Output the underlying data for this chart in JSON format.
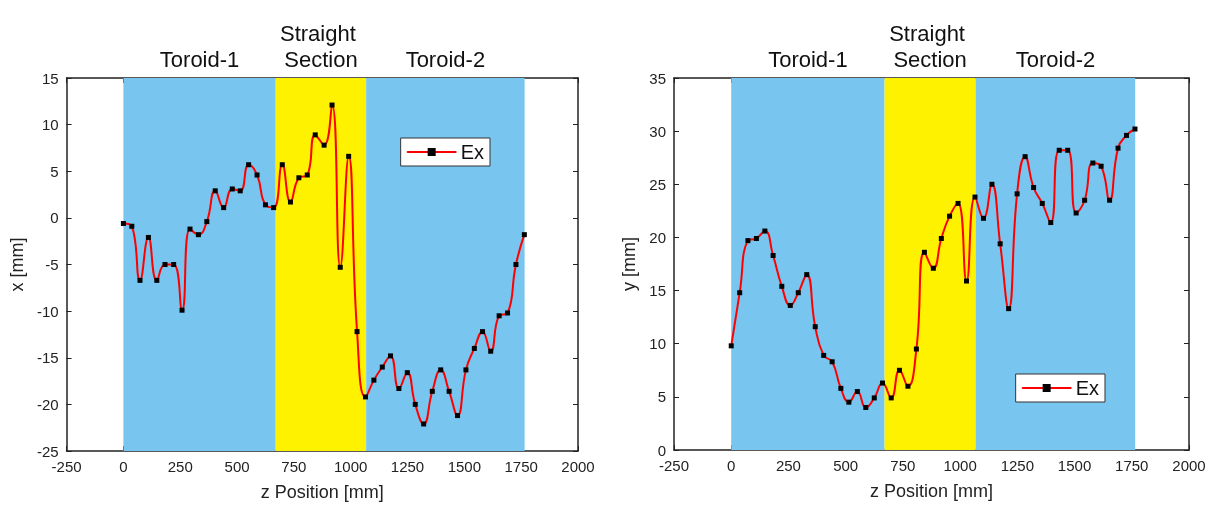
{
  "chart_data": [
    {
      "type": "line",
      "xlabel": "z Position [mm]",
      "ylabel": "x [mm]",
      "xlim": [
        -250,
        2000
      ],
      "xticks": [
        -250,
        0,
        250,
        500,
        750,
        1000,
        1250,
        1500,
        1750,
        2000
      ],
      "ylim": [
        -25,
        15
      ],
      "yticks": [
        -25,
        -20,
        -15,
        -10,
        -5,
        0,
        5,
        10,
        15
      ],
      "grid": false,
      "legend": "top right",
      "marker": "square",
      "line_style": "solid",
      "bands": [
        {
          "axis": "x",
          "from": 0,
          "to": 670,
          "label": "Toroid-1",
          "color": "#78c5ef"
        },
        {
          "axis": "x",
          "from": 670,
          "to": 1068,
          "label": "Straight Section",
          "color": "#fff200"
        },
        {
          "axis": "x",
          "from": 1068,
          "to": 1765,
          "label": "Toroid-2",
          "color": "#78c5ef"
        }
      ],
      "series": [
        {
          "name": "Ex",
          "color": "#ff0000",
          "x": [
            0,
            37,
            73,
            110,
            147,
            183,
            221,
            258,
            293,
            330,
            367,
            404,
            441,
            479,
            514,
            551,
            588,
            625,
            661,
            699,
            735,
            772,
            809,
            844,
            883,
            918,
            954,
            991,
            1028,
            1065,
            1102,
            1139,
            1175,
            1212,
            1249,
            1284,
            1321,
            1359,
            1396,
            1433,
            1470,
            1507,
            1544,
            1580,
            1616,
            1653,
            1690,
            1727,
            1764
          ],
          "values": [
            -0.6,
            -0.9,
            -6.7,
            -2.1,
            -6.7,
            -5.0,
            -5.0,
            -9.9,
            -1.2,
            -1.8,
            -0.4,
            2.9,
            1.1,
            3.1,
            2.9,
            5.7,
            4.6,
            1.4,
            1.1,
            5.7,
            1.7,
            4.3,
            4.6,
            8.9,
            7.8,
            12.1,
            -5.3,
            6.6,
            -12.2,
            -19.2,
            -17.4,
            -16.0,
            -14.8,
            -18.3,
            -16.6,
            -20.0,
            -22.1,
            -18.6,
            -16.3,
            -18.6,
            -21.2,
            -16.3,
            -14.0,
            -12.2,
            -14.3,
            -10.5,
            -10.2,
            -5.0,
            -1.8
          ]
        }
      ]
    },
    {
      "type": "line",
      "xlabel": "z Position [mm]",
      "ylabel": "y [mm]",
      "xlim": [
        -250,
        2000
      ],
      "xticks": [
        -250,
        0,
        250,
        500,
        750,
        1000,
        1250,
        1500,
        1750,
        2000
      ],
      "ylim": [
        0,
        35
      ],
      "yticks": [
        0,
        5,
        10,
        15,
        20,
        25,
        30,
        35
      ],
      "grid": false,
      "legend": "bottom right",
      "marker": "square",
      "line_style": "solid",
      "bands": [
        {
          "axis": "x",
          "from": 0,
          "to": 670,
          "label": "Toroid-1",
          "color": "#78c5ef"
        },
        {
          "axis": "x",
          "from": 670,
          "to": 1068,
          "label": "Straight Section",
          "color": "#fff200"
        },
        {
          "axis": "x",
          "from": 1068,
          "to": 1765,
          "label": "Toroid-2",
          "color": "#78c5ef"
        }
      ],
      "series": [
        {
          "name": "Ex",
          "color": "#ff0000",
          "x": [
            0,
            37,
            73,
            110,
            147,
            183,
            221,
            258,
            293,
            330,
            367,
            404,
            441,
            479,
            514,
            551,
            588,
            625,
            661,
            699,
            735,
            772,
            809,
            844,
            883,
            918,
            954,
            991,
            1028,
            1065,
            1102,
            1139,
            1175,
            1212,
            1249,
            1284,
            1321,
            1359,
            1396,
            1433,
            1470,
            1507,
            1544,
            1580,
            1616,
            1653,
            1690,
            1727,
            1764
          ],
          "values": [
            9.8,
            14.8,
            19.7,
            19.9,
            20.6,
            18.3,
            15.4,
            13.6,
            14.8,
            16.5,
            11.6,
            8.9,
            8.3,
            5.8,
            4.5,
            5.5,
            4.0,
            4.9,
            6.3,
            4.9,
            7.5,
            6.0,
            9.5,
            18.6,
            17.1,
            19.9,
            22.0,
            23.2,
            15.9,
            23.8,
            21.8,
            25.0,
            19.4,
            13.3,
            24.1,
            27.6,
            24.7,
            23.2,
            21.4,
            28.2,
            28.2,
            22.3,
            23.5,
            27.0,
            26.7,
            23.5,
            28.4,
            29.6,
            30.2
          ]
        }
      ]
    }
  ]
}
